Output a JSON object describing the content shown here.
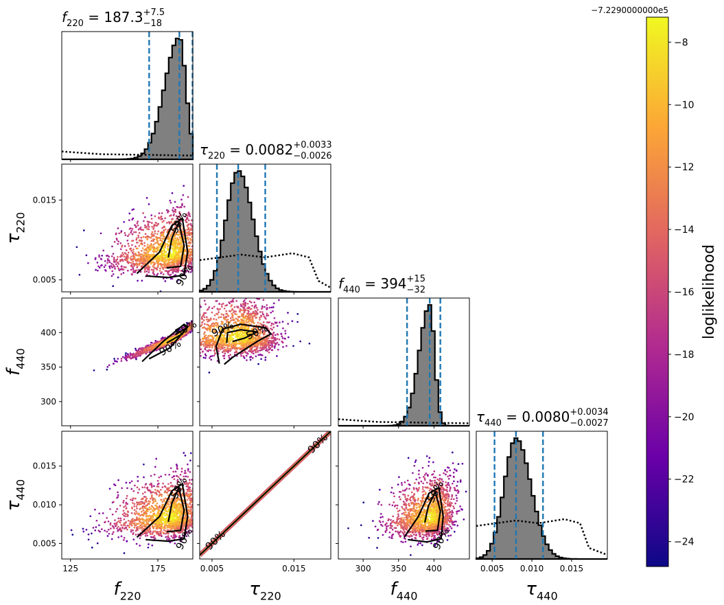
{
  "colormap": [
    "#0d0887",
    "#6a00a8",
    "#b12a90",
    "#e16462",
    "#fca636",
    "#f0f921"
  ],
  "colors": {
    "hist_fill": "#808080",
    "quantile_line": "#1f77b4",
    "contour": "#000000"
  },
  "chart_data": {
    "type": "scatter",
    "kind": "corner-plot",
    "parameters": [
      {
        "key": "f220",
        "sym": "f",
        "sub": "220",
        "range": [
          120,
          195
        ],
        "ticks": [
          125,
          175
        ],
        "ticklabels": [
          "125",
          "175"
        ]
      },
      {
        "key": "tau220",
        "sym": "τ",
        "sub": "220",
        "range": [
          0.0035,
          0.0195
        ],
        "ticks": [
          0.005,
          0.015
        ],
        "ticklabels": [
          "0.005",
          "0.015"
        ]
      },
      {
        "key": "f440",
        "sym": "f",
        "sub": "440",
        "range": [
          265,
          450
        ],
        "ticks": [
          300,
          350,
          400
        ],
        "ticklabels": [
          "300",
          "350",
          "400"
        ]
      },
      {
        "key": "tau440",
        "sym": "τ",
        "sub": "440",
        "range": [
          0.003,
          0.0195
        ],
        "ticks": [
          0.005,
          0.01,
          0.015
        ],
        "ticklabels": [
          "0.005",
          "0.010",
          "0.015"
        ]
      }
    ],
    "y_axes": [
      {
        "row": 1,
        "sym": "τ",
        "sub": "220",
        "range": [
          0.0035,
          0.0195
        ],
        "ticks": [
          0.005,
          0.015
        ],
        "ticklabels": [
          "0.005",
          "0.015"
        ]
      },
      {
        "row": 2,
        "sym": "f",
        "sub": "440",
        "range": [
          265,
          450
        ],
        "ticks": [
          300,
          350,
          400
        ],
        "ticklabels": [
          "300",
          "350",
          "400"
        ]
      },
      {
        "row": 3,
        "sym": "τ",
        "sub": "440",
        "range": [
          0.003,
          0.0195
        ],
        "ticks": [
          0.005,
          0.01,
          0.015
        ],
        "ticklabels": [
          "0.005",
          "0.010",
          "0.015"
        ]
      }
    ],
    "marginals": [
      {
        "param": "f220",
        "title": {
          "sym": "f",
          "sub": "220",
          "value": "187.3",
          "plus": "+7.5",
          "minus": "−18"
        },
        "quantiles": [
          170,
          187.3,
          194.8
        ],
        "median": 187.3,
        "sigma_lo": 8.5,
        "sigma_hi": 3.8,
        "prior_level": 0.04,
        "prior_range": [
          120,
          195
        ],
        "prior_kind": "flat"
      },
      {
        "param": "tau220",
        "title": {
          "sym": "τ",
          "sub": "220",
          "value": "0.0082",
          "plus": "+0.0033",
          "minus": "−0.0026"
        },
        "quantiles": [
          0.0056,
          0.0082,
          0.0115
        ],
        "median": 0.0082,
        "sigma_lo": 0.0015,
        "sigma_hi": 0.0018,
        "prior_level": 0.27,
        "prior_range": [
          0.0035,
          0.018
        ],
        "prior_kind": "bump"
      },
      {
        "param": "f440",
        "title": {
          "sym": "f",
          "sub": "440",
          "value": "394",
          "plus": "+15",
          "minus": "−32"
        },
        "quantiles": [
          362,
          394,
          409
        ],
        "median": 394,
        "sigma_lo": 15,
        "sigma_hi": 7,
        "prior_level": 0.03,
        "prior_range": [
          265,
          450
        ],
        "prior_kind": "flat"
      },
      {
        "param": "tau440",
        "title": {
          "sym": "τ",
          "sub": "440",
          "value": "0.0080",
          "plus": "+0.0034",
          "minus": "−0.0027"
        },
        "quantiles": [
          0.0053,
          0.008,
          0.0114
        ],
        "median": 0.008,
        "sigma_lo": 0.0015,
        "sigma_hi": 0.0019,
        "prior_level": 0.28,
        "prior_range": [
          0.003,
          0.0172
        ],
        "prior_kind": "bump"
      }
    ],
    "contour_levels": [
      "50%",
      "90%"
    ],
    "scatter_pairs": [
      {
        "row": 1,
        "col": 0,
        "x": "f220",
        "y": "tau220",
        "center": [
          183,
          0.0082
        ],
        "spread": [
          9,
          0.0018
        ],
        "corr": 0.25,
        "contours": [
          {
            "label": "90%",
            "pts": [
              [
                168,
                0.0055
              ],
              [
                181,
                0.0053
              ],
              [
                190,
                0.0056
              ],
              [
                192,
                0.0085
              ],
              [
                189,
                0.0127
              ],
              [
                183,
                0.0118
              ],
              [
                176,
                0.0085
              ],
              [
                163,
                0.0058
              ]
            ]
          },
          {
            "label": "50%",
            "pts": [
              [
                180,
                0.0065
              ],
              [
                188,
                0.0067
              ],
              [
                190,
                0.0093
              ],
              [
                187,
                0.0122
              ],
              [
                183,
                0.0102
              ],
              [
                181,
                0.0078
              ]
            ]
          }
        ]
      },
      {
        "row": 2,
        "col": 0,
        "x": "f220",
        "y": "f440",
        "center": [
          186,
          393
        ],
        "spread": [
          7,
          14
        ],
        "corr": 0.98,
        "contours": [
          {
            "label": "90%",
            "pts": [
              [
                170,
                362
              ],
              [
                182,
                378
              ],
              [
                192,
                408
              ],
              [
                190,
                412
              ],
              [
                178,
                387
              ],
              [
                166,
                358
              ]
            ]
          },
          {
            "label": "50%",
            "pts": [
              [
                180,
                385
              ],
              [
                189,
                398
              ],
              [
                191,
                406
              ],
              [
                185,
                397
              ]
            ]
          }
        ]
      },
      {
        "row": 3,
        "col": 0,
        "x": "f220",
        "y": "tau440",
        "center": [
          183,
          0.0082
        ],
        "spread": [
          9,
          0.0018
        ],
        "corr": 0.25,
        "contours": [
          {
            "label": "90%",
            "pts": [
              [
                168,
                0.0055
              ],
              [
                181,
                0.0053
              ],
              [
                190,
                0.0056
              ],
              [
                192,
                0.0085
              ],
              [
                189,
                0.0127
              ],
              [
                183,
                0.0118
              ],
              [
                176,
                0.0085
              ],
              [
                163,
                0.0058
              ]
            ]
          },
          {
            "label": "50%",
            "pts": [
              [
                180,
                0.0065
              ],
              [
                188,
                0.0067
              ],
              [
                190,
                0.0093
              ],
              [
                187,
                0.0122
              ],
              [
                183,
                0.0102
              ],
              [
                181,
                0.0078
              ]
            ]
          }
        ]
      },
      {
        "row": 2,
        "col": 1,
        "x": "tau220",
        "y": "f440",
        "center": [
          0.0085,
          392
        ],
        "spread": [
          0.0022,
          18
        ],
        "corr": 0.0,
        "contours": [
          {
            "label": "90%",
            "pts": [
              [
                0.0059,
                355
              ],
              [
                0.0055,
                380
              ],
              [
                0.0063,
                405
              ],
              [
                0.0085,
                412
              ],
              [
                0.0115,
                407
              ],
              [
                0.0122,
                398
              ],
              [
                0.0105,
                387
              ],
              [
                0.0075,
                364
              ],
              [
                0.0065,
                354
              ]
            ]
          },
          {
            "label": "50%",
            "pts": [
              [
                0.0068,
                385
              ],
              [
                0.0069,
                400
              ],
              [
                0.0085,
                404
              ],
              [
                0.0105,
                401
              ],
              [
                0.009,
                392
              ],
              [
                0.0075,
                387
              ]
            ]
          }
        ]
      },
      {
        "row": 3,
        "col": 1,
        "x": "tau220",
        "y": "tau440",
        "center": [
          0.011,
          0.011
        ],
        "spread": [
          0.0035,
          0.0035
        ],
        "corr": 1.0,
        "contours": [
          {
            "label": "90%",
            "pts": [
              [
                0.0035,
                0.0035
              ],
              [
                0.0195,
                0.0195
              ]
            ]
          }
        ]
      },
      {
        "row": 3,
        "col": 2,
        "x": "f440",
        "y": "tau440",
        "center": [
          396,
          0.0082
        ],
        "spread": [
          16,
          0.0018
        ],
        "corr": 0.25,
        "contours": [
          {
            "label": "90%",
            "pts": [
              [
                363,
                0.0055
              ],
              [
                390,
                0.0052
              ],
              [
                410,
                0.0056
              ],
              [
                413,
                0.0085
              ],
              [
                407,
                0.0122
              ],
              [
                393,
                0.0115
              ],
              [
                378,
                0.0085
              ],
              [
                358,
                0.0058
              ]
            ]
          },
          {
            "label": "50%",
            "pts": [
              [
                388,
                0.0066
              ],
              [
                405,
                0.0067
              ],
              [
                409,
                0.0092
              ],
              [
                402,
                0.0117
              ],
              [
                392,
                0.0098
              ],
              [
                387,
                0.0077
              ]
            ]
          }
        ]
      }
    ],
    "colorbar": {
      "label": "loglikelihood",
      "offset_text": "−7.2290000000e5",
      "range": [
        -24.8,
        -7.2
      ],
      "ticks": [
        -8,
        -10,
        -12,
        -14,
        -16,
        -18,
        -20,
        -22,
        -24
      ],
      "ticklabels": [
        "−8",
        "−10",
        "−12",
        "−14",
        "−16",
        "−18",
        "−20",
        "−22",
        "−24"
      ]
    }
  }
}
